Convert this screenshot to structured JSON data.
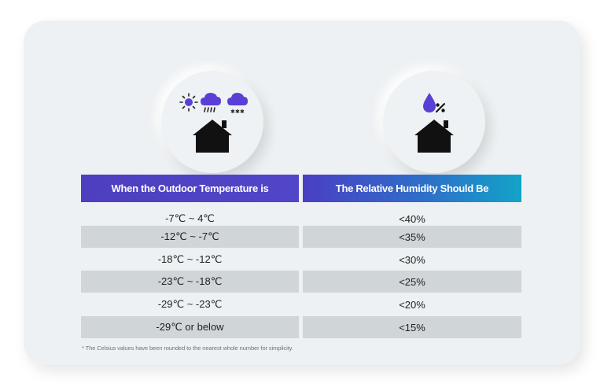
{
  "icons": {
    "left": [
      "sun-icon",
      "rain-cloud-icon",
      "snow-cloud-icon",
      "house-icon"
    ],
    "right": [
      "humidity-drop-percent-icon",
      "house-icon"
    ]
  },
  "colors": {
    "header_left": "#4d3fbf",
    "header_right_start": "#4a3fc4",
    "header_right_end": "#12a3c7",
    "icon_accent": "#5a3fd6",
    "row_shade": "#d0d5d8"
  },
  "table": {
    "headers": [
      "When the Outdoor Temperature is",
      "The Relative Humidity Should Be"
    ],
    "rows": [
      {
        "temperature": "-7℃ ~ 4℃",
        "humidity": "<40%"
      },
      {
        "temperature": "-12℃ ~ -7℃",
        "humidity": "<35%"
      },
      {
        "temperature": "-18℃ ~ -12℃",
        "humidity": "<30%"
      },
      {
        "temperature": "-23℃ ~ -18℃",
        "humidity": "<25%"
      },
      {
        "temperature": "-29℃ ~ -23℃",
        "humidity": "<20%"
      },
      {
        "temperature": "-29℃ or below",
        "humidity": "<15%"
      }
    ]
  },
  "footnote": "* The Celsius values have been rounded to the nearest whole number for simplicity."
}
